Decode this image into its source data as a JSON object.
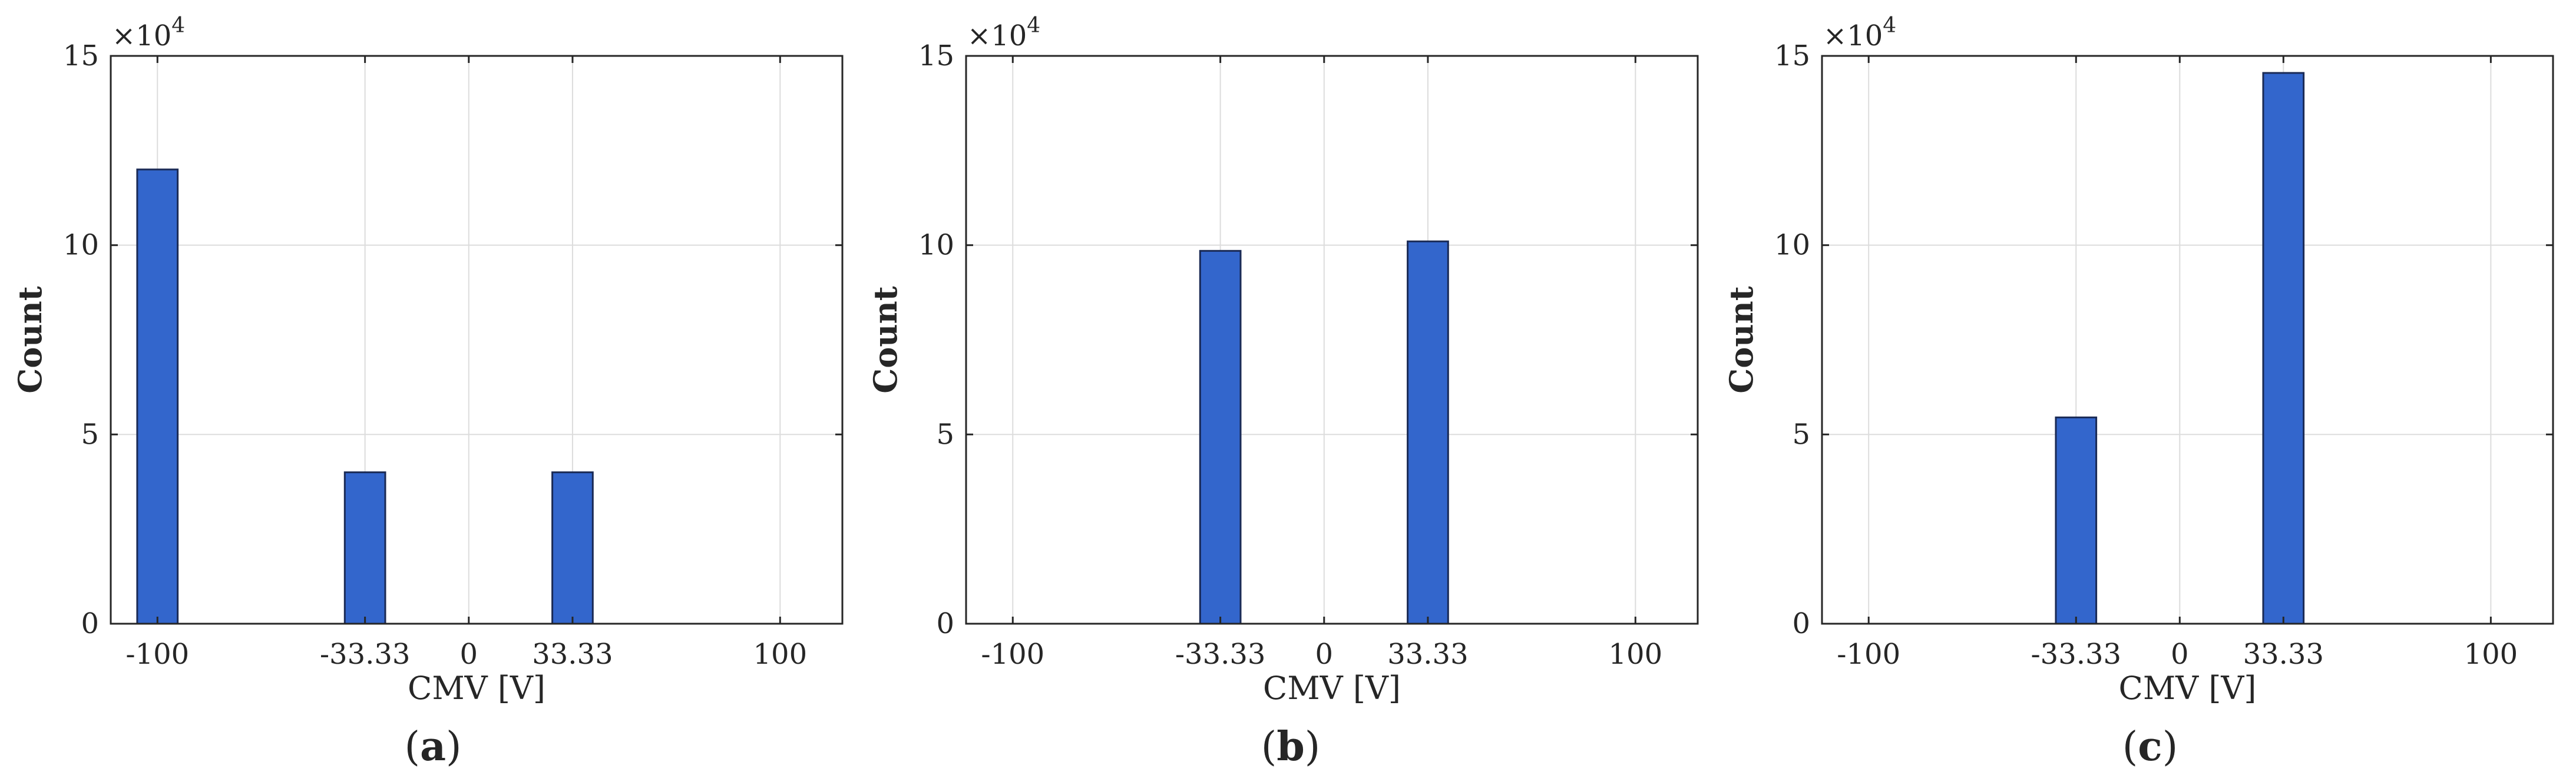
{
  "figure": {
    "panel_labels": [
      "(a)",
      "(b)",
      "(c)"
    ],
    "bar_color": "#3366cc",
    "bar_edge_color": "#1a2a55",
    "grid_color": "#dcdcdc"
  },
  "chart_data": [
    {
      "type": "bar",
      "panel": "(a)",
      "categories": [
        "-100",
        "-33.33",
        "0",
        "33.33",
        "100"
      ],
      "x": [
        -100,
        -33.33,
        0,
        33.33,
        100
      ],
      "values": [
        120000,
        40000,
        0,
        40000,
        0
      ],
      "xlabel": "CMV [V]",
      "ylabel": "Count",
      "ylim": [
        0,
        150000
      ],
      "xlim": [
        -115,
        120
      ],
      "yticks": [
        0,
        5,
        10,
        15
      ],
      "y_exponent_label": "×10",
      "y_exponent_power": "4",
      "grid": true
    },
    {
      "type": "bar",
      "panel": "(b)",
      "categories": [
        "-100",
        "-33.33",
        "0",
        "33.33",
        "100"
      ],
      "x": [
        -100,
        -33.33,
        0,
        33.33,
        100
      ],
      "values": [
        0,
        98500,
        0,
        101000,
        0
      ],
      "xlabel": "CMV [V]",
      "ylabel": "Count",
      "ylim": [
        0,
        150000
      ],
      "xlim": [
        -115,
        120
      ],
      "yticks": [
        0,
        5,
        10,
        15
      ],
      "y_exponent_label": "×10",
      "y_exponent_power": "4",
      "grid": true
    },
    {
      "type": "bar",
      "panel": "(c)",
      "categories": [
        "-100",
        "-33.33",
        "0",
        "33.33",
        "100"
      ],
      "x": [
        -100,
        -33.33,
        0,
        33.33,
        100
      ],
      "values": [
        0,
        54500,
        0,
        145500,
        0
      ],
      "xlabel": "CMV [V]",
      "ylabel": "Count",
      "ylim": [
        0,
        150000
      ],
      "xlim": [
        -115,
        120
      ],
      "yticks": [
        0,
        5,
        10,
        15
      ],
      "y_exponent_label": "×10",
      "y_exponent_power": "4",
      "grid": true
    }
  ]
}
